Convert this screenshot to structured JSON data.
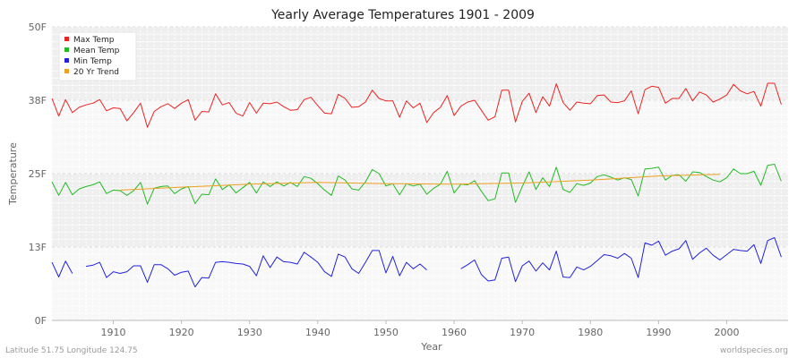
{
  "chart_data": {
    "type": "line",
    "title": "Yearly Average Temperatures 1901 - 2009",
    "xlabel": "Year",
    "ylabel": "Temperature",
    "xlim": [
      1901,
      2009
    ],
    "ylim": [
      0,
      50
    ],
    "x_ticks": [
      1910,
      1920,
      1930,
      1940,
      1950,
      1960,
      1970,
      1980,
      1990,
      2000
    ],
    "y_ticks": [
      {
        "value": 0,
        "label": "0F"
      },
      {
        "value": 12.5,
        "label": "13F"
      },
      {
        "value": 25,
        "label": "25F"
      },
      {
        "value": 37.5,
        "label": "38F"
      },
      {
        "value": 50,
        "label": "50F"
      }
    ],
    "grid": true,
    "legend_position": "top-left",
    "x_start": 1901,
    "series": [
      {
        "name": "Max Temp",
        "color": "#ee2222",
        "values": [
          37.8,
          34.8,
          37.6,
          35.4,
          36.3,
          36.7,
          37.0,
          37.6,
          35.7,
          36.2,
          36.1,
          34.0,
          35.4,
          37.0,
          32.9,
          35.6,
          36.4,
          36.9,
          36.1,
          37.0,
          37.6,
          34.1,
          35.6,
          35.5,
          38.6,
          36.7,
          37.1,
          35.3,
          34.8,
          37.1,
          35.3,
          37.0,
          36.9,
          37.2,
          36.4,
          35.8,
          35.9,
          37.6,
          38.0,
          36.6,
          35.3,
          35.2,
          38.5,
          37.8,
          36.3,
          36.4,
          37.2,
          39.2,
          37.8,
          37.4,
          37.4,
          34.6,
          37.4,
          36.2,
          37.0,
          33.7,
          35.4,
          36.3,
          38.3,
          34.9,
          36.5,
          37.2,
          37.5,
          35.8,
          34.1,
          34.7,
          39.2,
          39.2,
          33.8,
          37.3,
          38.7,
          35.4,
          38.1,
          36.5,
          40.3,
          37.1,
          35.8,
          37.2,
          37.0,
          36.9,
          38.3,
          38.4,
          37.2,
          37.1,
          37.4,
          39.1,
          35.2,
          39.3,
          39.9,
          39.7,
          37.0,
          37.8,
          37.8,
          39.5,
          37.4,
          38.9,
          38.4,
          37.2,
          37.7,
          38.4,
          40.2,
          39.1,
          38.6,
          39.0,
          36.5,
          40.4,
          40.4,
          36.8
        ]
      },
      {
        "name": "Mean Temp",
        "color": "#22bb22",
        "values": [
          23.6,
          21.3,
          23.5,
          21.4,
          22.4,
          22.8,
          23.1,
          23.6,
          21.6,
          22.2,
          22.1,
          21.3,
          22.1,
          23.5,
          19.8,
          22.5,
          22.8,
          22.9,
          21.6,
          22.4,
          22.8,
          19.9,
          21.5,
          21.4,
          24.1,
          22.3,
          23.1,
          21.7,
          22.6,
          23.5,
          21.7,
          23.6,
          22.8,
          23.6,
          22.9,
          23.5,
          22.8,
          24.5,
          24.2,
          23.3,
          22.2,
          21.3,
          24.6,
          23.9,
          22.4,
          22.2,
          23.6,
          25.7,
          25.0,
          22.9,
          23.3,
          21.4,
          23.3,
          22.9,
          23.2,
          21.5,
          22.5,
          23.2,
          25.4,
          21.7,
          23.2,
          23.1,
          23.8,
          22.0,
          20.4,
          20.7,
          25.1,
          25.1,
          20.1,
          22.8,
          25.3,
          22.3,
          24.3,
          22.8,
          26.1,
          22.3,
          21.8,
          23.3,
          23.0,
          23.4,
          24.5,
          24.8,
          24.4,
          23.9,
          24.3,
          24.0,
          21.2,
          25.8,
          25.9,
          26.1,
          23.9,
          24.7,
          24.8,
          23.7,
          25.3,
          25.2,
          24.5,
          23.9,
          23.6,
          24.3,
          25.8,
          25.0,
          25.0,
          25.4,
          23.0,
          26.4,
          26.6,
          23.7
        ]
      },
      {
        "name": "Min Temp",
        "color": "#2222dd",
        "values": [
          9.9,
          7.4,
          10.1,
          8.0,
          null,
          9.2,
          9.4,
          9.9,
          7.3,
          8.3,
          8.0,
          8.3,
          9.3,
          9.3,
          6.5,
          9.5,
          9.5,
          8.8,
          7.7,
          8.2,
          8.4,
          5.7,
          7.3,
          7.2,
          9.9,
          10.0,
          9.9,
          9.7,
          9.6,
          9.2,
          7.6,
          11.0,
          9.0,
          10.8,
          10.0,
          9.9,
          9.6,
          11.6,
          10.8,
          9.9,
          8.3,
          7.5,
          11.3,
          10.8,
          8.8,
          8.0,
          9.9,
          11.9,
          11.9,
          8.1,
          10.9,
          7.6,
          9.9,
          8.8,
          9.6,
          8.6,
          null,
          null,
          null,
          null,
          8.8,
          9.5,
          10.3,
          7.8,
          6.7,
          6.9,
          10.6,
          10.8,
          6.6,
          9.3,
          10.1,
          8.4,
          9.8,
          8.6,
          11.8,
          7.4,
          7.3,
          9.1,
          8.6,
          9.2,
          10.2,
          11.2,
          11.0,
          10.6,
          11.4,
          10.6,
          7.3,
          13.2,
          12.8,
          13.5,
          11.1,
          11.8,
          12.2,
          13.6,
          10.4,
          11.5,
          12.3,
          11.1,
          10.3,
          11.2,
          12.1,
          11.9,
          11.8,
          12.9,
          9.7,
          13.6,
          14.1,
          10.8
        ]
      },
      {
        "name": "20 Yr Trend",
        "color": "#f0a020",
        "x": [
          1911,
          1920,
          1930,
          1940,
          1950,
          1960,
          1970,
          1980,
          1990,
          1999
        ],
        "values": [
          22.2,
          22.7,
          23.2,
          23.5,
          23.3,
          23.2,
          23.4,
          23.9,
          24.6,
          24.9
        ]
      }
    ]
  },
  "footer": {
    "location": "Latitude 51.75 Longitude 124.75",
    "site": "worldspecies.org"
  }
}
